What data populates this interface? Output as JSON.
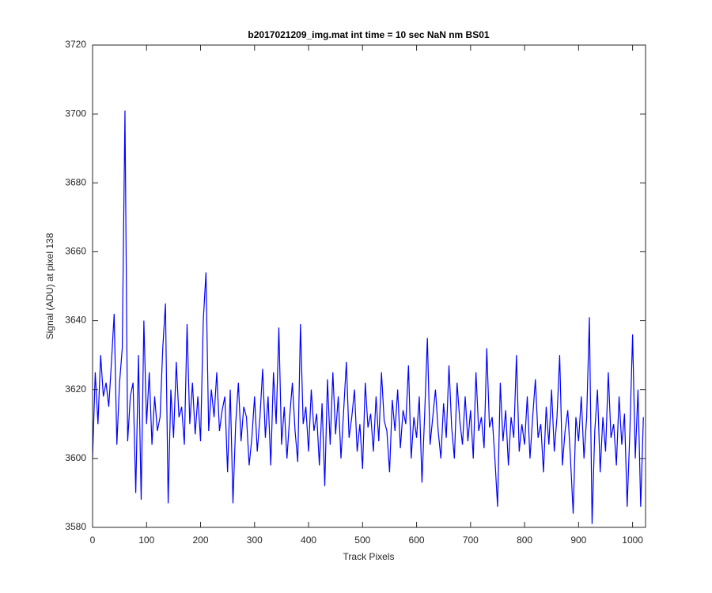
{
  "chart_data": {
    "type": "line",
    "title": "b2017021209_img.mat int time = 10 sec  NaN nm BS01",
    "xlabel": "Track Pixels",
    "ylabel": "Signal (ADU) at pixel 138",
    "color": "#0000ff",
    "xlim": [
      0,
      1024
    ],
    "ylim": [
      3580,
      3720
    ],
    "xticks": [
      0,
      100,
      200,
      300,
      400,
      500,
      600,
      700,
      800,
      900,
      1000
    ],
    "yticks": [
      3580,
      3600,
      3620,
      3640,
      3660,
      3680,
      3700,
      3720
    ],
    "x": [
      0,
      5,
      10,
      15,
      20,
      25,
      30,
      35,
      40,
      45,
      50,
      55,
      60,
      65,
      70,
      75,
      80,
      85,
      90,
      95,
      100,
      105,
      110,
      115,
      120,
      125,
      130,
      135,
      140,
      145,
      150,
      155,
      160,
      165,
      170,
      175,
      180,
      185,
      190,
      195,
      200,
      205,
      210,
      215,
      220,
      225,
      230,
      235,
      240,
      245,
      250,
      255,
      260,
      265,
      270,
      275,
      280,
      285,
      290,
      295,
      300,
      305,
      310,
      315,
      320,
      325,
      330,
      335,
      340,
      345,
      350,
      355,
      360,
      365,
      370,
      375,
      380,
      385,
      390,
      395,
      400,
      405,
      410,
      415,
      420,
      425,
      430,
      435,
      440,
      445,
      450,
      455,
      460,
      465,
      470,
      475,
      480,
      485,
      490,
      495,
      500,
      505,
      510,
      515,
      520,
      525,
      530,
      535,
      540,
      545,
      550,
      555,
      560,
      565,
      570,
      575,
      580,
      585,
      590,
      595,
      600,
      605,
      610,
      615,
      620,
      625,
      630,
      635,
      640,
      645,
      650,
      655,
      660,
      665,
      670,
      675,
      680,
      685,
      690,
      695,
      700,
      705,
      710,
      715,
      720,
      725,
      730,
      735,
      740,
      745,
      750,
      755,
      760,
      765,
      770,
      775,
      780,
      785,
      790,
      795,
      800,
      805,
      810,
      815,
      820,
      825,
      830,
      835,
      840,
      845,
      850,
      855,
      860,
      865,
      870,
      875,
      880,
      885,
      890,
      895,
      900,
      905,
      910,
      915,
      920,
      925,
      930,
      935,
      940,
      945,
      950,
      955,
      960,
      965,
      970,
      975,
      980,
      985,
      990,
      995,
      1000,
      1005,
      1010,
      1015,
      1020
    ],
    "values": [
      3600,
      3625,
      3610,
      3630,
      3618,
      3622,
      3615,
      3628,
      3642,
      3604,
      3622,
      3632,
      3701,
      3605,
      3618,
      3622,
      3590,
      3630,
      3588,
      3640,
      3610,
      3625,
      3604,
      3618,
      3608,
      3612,
      3632,
      3645,
      3587,
      3620,
      3606,
      3628,
      3612,
      3615,
      3604,
      3639,
      3610,
      3622,
      3607,
      3618,
      3605,
      3640,
      3654,
      3608,
      3620,
      3612,
      3625,
      3608,
      3614,
      3618,
      3596,
      3620,
      3587,
      3610,
      3622,
      3605,
      3615,
      3612,
      3598,
      3606,
      3618,
      3602,
      3612,
      3626,
      3606,
      3618,
      3598,
      3625,
      3610,
      3638,
      3604,
      3615,
      3600,
      3612,
      3622,
      3608,
      3599,
      3639,
      3610,
      3615,
      3602,
      3620,
      3608,
      3613,
      3598,
      3616,
      3592,
      3623,
      3604,
      3625,
      3607,
      3618,
      3600,
      3614,
      3628,
      3606,
      3612,
      3620,
      3602,
      3610,
      3597,
      3622,
      3609,
      3613,
      3602,
      3618,
      3605,
      3625,
      3611,
      3608,
      3596,
      3617,
      3608,
      3620,
      3603,
      3614,
      3610,
      3627,
      3600,
      3612,
      3606,
      3618,
      3593,
      3613,
      3635,
      3604,
      3612,
      3620,
      3608,
      3600,
      3616,
      3606,
      3627,
      3609,
      3600,
      3622,
      3611,
      3604,
      3618,
      3605,
      3614,
      3600,
      3625,
      3608,
      3612,
      3603,
      3632,
      3609,
      3612,
      3600,
      3586,
      3622,
      3605,
      3614,
      3598,
      3612,
      3606,
      3630,
      3602,
      3610,
      3604,
      3618,
      3600,
      3612,
      3623,
      3606,
      3610,
      3596,
      3615,
      3604,
      3620,
      3602,
      3612,
      3630,
      3598,
      3608,
      3614,
      3600,
      3584,
      3612,
      3605,
      3618,
      3600,
      3612,
      3641,
      3581,
      3608,
      3620,
      3596,
      3612,
      3602,
      3625,
      3606,
      3610,
      3598,
      3618,
      3604,
      3613,
      3586,
      3608,
      3636,
      3600,
      3620,
      3586,
      3612
    ]
  }
}
